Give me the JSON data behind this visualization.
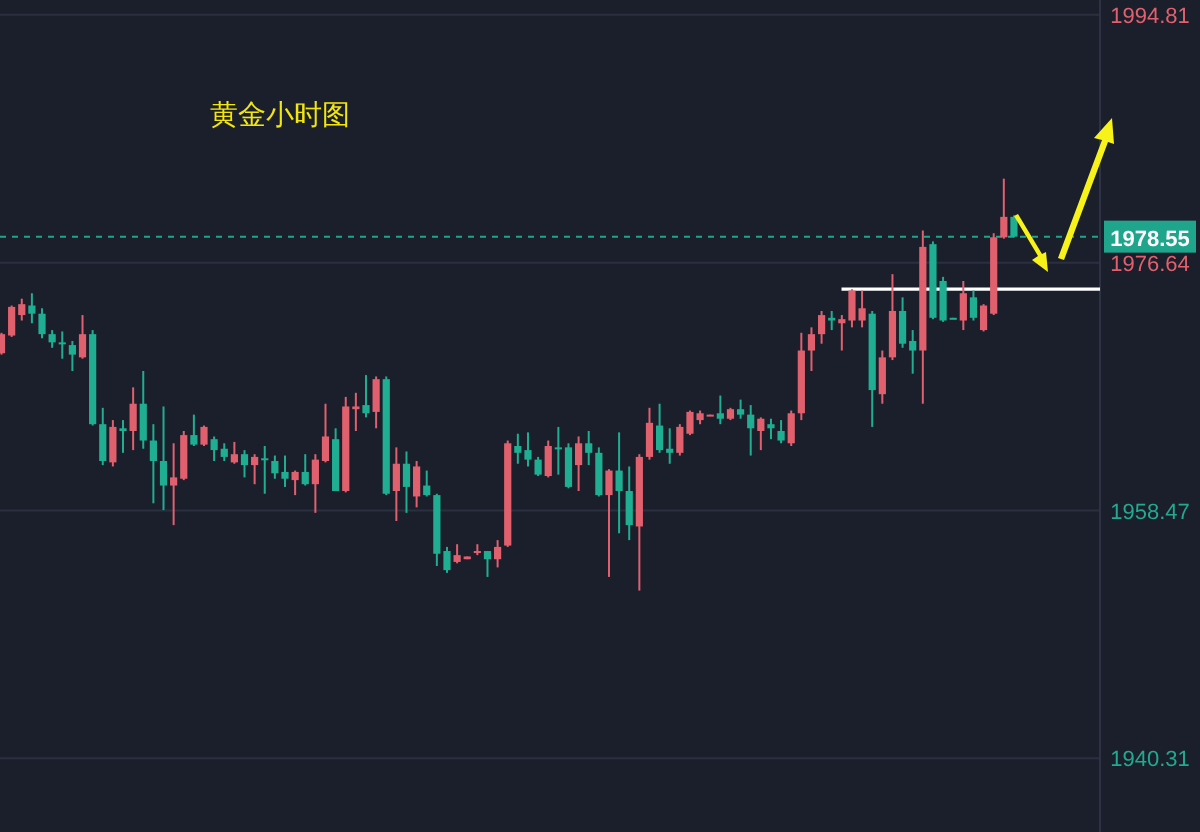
{
  "chart_data": {
    "type": "candlestick",
    "title": "黄金小时图",
    "categories": [
      null,
      null,
      null,
      null,
      null,
      null,
      null,
      null,
      null,
      null,
      null,
      null,
      null,
      null,
      null,
      null,
      null,
      null,
      null,
      null,
      null,
      null,
      null,
      null,
      null,
      null,
      null,
      null,
      null,
      null,
      null,
      null,
      null,
      null,
      null,
      null,
      null,
      null,
      null,
      null,
      null,
      null,
      null,
      null,
      null,
      null,
      null,
      null,
      null,
      null,
      null,
      null,
      null,
      null,
      null,
      null,
      null,
      null,
      null,
      null,
      null,
      null,
      null,
      null,
      null,
      null,
      null,
      null,
      null,
      null,
      null,
      null,
      null,
      null,
      null,
      null,
      null,
      null,
      null,
      null,
      null,
      null,
      null,
      null,
      null,
      null,
      null,
      null,
      null,
      null,
      null,
      null,
      null,
      null,
      null,
      null,
      null,
      null,
      null,
      null,
      null
    ],
    "ohlc": [
      [
        1970.0,
        1971.5,
        1969.9,
        1971.4
      ],
      [
        1971.3,
        1973.5,
        1971.2,
        1973.4
      ],
      [
        1972.8,
        1974.0,
        1972.4,
        1973.6
      ],
      [
        1973.5,
        1974.4,
        1972.2,
        1972.9
      ],
      [
        1972.9,
        1973.3,
        1971.1,
        1971.4
      ],
      [
        1971.4,
        1971.7,
        1970.4,
        1970.8
      ],
      [
        1970.8,
        1971.6,
        1969.6,
        1970.7
      ],
      [
        1970.6,
        1970.9,
        1968.7,
        1969.9
      ],
      [
        1969.7,
        1972.8,
        1969.6,
        1971.4
      ],
      [
        1971.4,
        1971.7,
        1964.7,
        1964.8
      ],
      [
        1964.8,
        1966.0,
        1961.8,
        1962.1
      ],
      [
        1962.0,
        1965.1,
        1961.7,
        1964.6
      ],
      [
        1964.5,
        1965.1,
        1962.7,
        1964.3
      ],
      [
        1964.3,
        1967.5,
        1962.9,
        1966.3
      ],
      [
        1966.3,
        1968.7,
        1963.0,
        1963.6
      ],
      [
        1963.6,
        1964.8,
        1959.0,
        1962.1
      ],
      [
        1962.1,
        1966.1,
        1958.5,
        1960.3
      ],
      [
        1960.3,
        1963.4,
        1957.4,
        1960.9
      ],
      [
        1960.8,
        1964.3,
        1960.7,
        1964.0
      ],
      [
        1964.0,
        1965.5,
        1963.2,
        1963.3
      ],
      [
        1963.3,
        1964.7,
        1963.2,
        1964.6
      ],
      [
        1963.7,
        1963.9,
        1962.1,
        1962.9
      ],
      [
        1963.0,
        1963.4,
        1962.1,
        1962.4
      ],
      [
        1962.0,
        1963.5,
        1961.9,
        1962.6
      ],
      [
        1962.6,
        1962.9,
        1960.9,
        1961.8
      ],
      [
        1961.8,
        1962.6,
        1960.4,
        1962.4
      ],
      [
        1962.3,
        1963.2,
        1959.7,
        1962.2
      ],
      [
        1962.1,
        1962.5,
        1960.8,
        1961.2
      ],
      [
        1961.3,
        1962.5,
        1960.2,
        1960.8
      ],
      [
        1960.7,
        1961.4,
        1959.6,
        1961.3
      ],
      [
        1961.3,
        1962.6,
        1960.3,
        1960.4
      ],
      [
        1960.4,
        1962.6,
        1958.3,
        1962.2
      ],
      [
        1962.1,
        1966.3,
        1962.0,
        1963.9
      ],
      [
        1963.7,
        1964.5,
        1959.9,
        1959.9
      ],
      [
        1959.9,
        1966.8,
        1959.8,
        1966.1
      ],
      [
        1965.9,
        1967.1,
        1964.3,
        1966.1
      ],
      [
        1966.2,
        1968.4,
        1965.3,
        1965.6
      ],
      [
        1965.7,
        1968.3,
        1964.5,
        1968.1
      ],
      [
        1968.1,
        1968.3,
        1959.6,
        1959.7
      ],
      [
        1959.9,
        1963.1,
        1957.7,
        1961.9
      ],
      [
        1961.9,
        1962.8,
        1958.3,
        1960.2
      ],
      [
        1959.5,
        1962.1,
        1958.7,
        1961.7
      ],
      [
        1960.3,
        1961.4,
        1959.5,
        1959.6
      ],
      [
        1959.6,
        1959.7,
        1954.4,
        1955.3
      ],
      [
        1955.5,
        1955.8,
        1953.9,
        1954.1
      ],
      [
        1954.7,
        1956.0,
        1954.6,
        1955.2
      ],
      [
        1954.9,
        1955.1,
        1954.9,
        1955.1
      ],
      [
        1955.4,
        1956.0,
        1955.2,
        1955.5
      ],
      [
        1955.5,
        1955.5,
        1953.6,
        1954.9
      ],
      [
        1954.9,
        1956.3,
        1954.3,
        1955.8
      ],
      [
        1955.9,
        1963.6,
        1955.8,
        1963.4
      ],
      [
        1963.2,
        1964.1,
        1961.9,
        1962.7
      ],
      [
        1962.9,
        1964.2,
        1961.7,
        1962.2
      ],
      [
        1962.2,
        1962.4,
        1961.0,
        1961.1
      ],
      [
        1961.0,
        1963.6,
        1960.9,
        1963.2
      ],
      [
        1963.1,
        1964.6,
        1961.1,
        1963.0
      ],
      [
        1963.1,
        1963.4,
        1960.1,
        1960.2
      ],
      [
        1961.8,
        1963.9,
        1959.9,
        1963.4
      ],
      [
        1963.4,
        1964.3,
        1961.8,
        1962.7
      ],
      [
        1962.7,
        1963.1,
        1959.5,
        1959.6
      ],
      [
        1959.6,
        1961.5,
        1953.6,
        1961.4
      ],
      [
        1961.4,
        1964.2,
        1956.8,
        1959.9
      ],
      [
        1959.9,
        1961.7,
        1956.3,
        1957.4
      ],
      [
        1957.3,
        1962.6,
        1952.6,
        1962.4
      ],
      [
        1962.4,
        1966.0,
        1962.2,
        1964.9
      ],
      [
        1964.7,
        1966.3,
        1962.7,
        1962.9
      ],
      [
        1963.0,
        1964.5,
        1961.9,
        1962.7
      ],
      [
        1962.7,
        1964.8,
        1962.5,
        1964.6
      ],
      [
        1964.1,
        1965.8,
        1964.0,
        1965.7
      ],
      [
        1965.1,
        1965.8,
        1964.8,
        1965.6
      ],
      [
        1965.4,
        1965.5,
        1965.4,
        1965.5
      ],
      [
        1965.6,
        1966.9,
        1964.8,
        1965.2
      ],
      [
        1965.2,
        1966.0,
        1965.1,
        1965.9
      ],
      [
        1965.9,
        1966.6,
        1965.2,
        1965.5
      ],
      [
        1965.5,
        1966.2,
        1962.5,
        1964.5
      ],
      [
        1964.3,
        1965.3,
        1962.9,
        1965.2
      ],
      [
        1964.8,
        1965.2,
        1963.7,
        1964.5
      ],
      [
        1964.3,
        1965.1,
        1963.4,
        1963.6
      ],
      [
        1963.4,
        1965.8,
        1963.2,
        1965.6
      ],
      [
        1965.6,
        1971.5,
        1965.1,
        1970.2
      ],
      [
        1970.2,
        1971.9,
        1968.7,
        1971.4
      ],
      [
        1971.4,
        1973.1,
        1970.7,
        1972.8
      ],
      [
        1972.6,
        1973.1,
        1971.7,
        1972.4
      ],
      [
        1972.2,
        1972.8,
        1970.2,
        1972.5
      ],
      [
        1972.4,
        1974.7,
        1971.9,
        1974.6
      ],
      [
        1972.4,
        1974.6,
        1971.9,
        1973.3
      ],
      [
        1972.9,
        1973.1,
        1964.6,
        1967.3
      ],
      [
        1967.0,
        1970.2,
        1966.3,
        1969.7
      ],
      [
        1969.7,
        1975.8,
        1969.5,
        1973.1
      ],
      [
        1973.1,
        1974.1,
        1970.4,
        1970.7
      ],
      [
        1970.9,
        1971.7,
        1968.5,
        1970.2
      ],
      [
        1970.2,
        1979.0,
        1966.3,
        1977.8
      ],
      [
        1978.0,
        1978.2,
        1972.5,
        1972.6
      ],
      [
        1975.3,
        1975.6,
        1972.3,
        1972.4
      ],
      [
        1972.6,
        1972.6,
        1972.5,
        1972.5
      ],
      [
        1972.4,
        1975.3,
        1971.7,
        1974.4
      ],
      [
        1974.1,
        1974.6,
        1972.4,
        1972.6
      ],
      [
        1971.7,
        1973.6,
        1971.6,
        1973.5
      ],
      [
        1972.9,
        1978.8,
        1972.8,
        1978.5
      ],
      [
        1978.5,
        1982.8,
        1978.4,
        1980.0
      ],
      [
        1980.0,
        1980.1,
        1978.5,
        1978.55
      ]
    ],
    "ylim": [
      1934.9,
      1995.9
    ],
    "yticks": [
      1994.81,
      1976.64,
      1958.47,
      1940.31
    ],
    "grid": "y",
    "ref_lines": [
      {
        "axis": "y",
        "value": 1978.55,
        "label": "1978.55",
        "color": "#1fa58c",
        "line_style": "dashed"
      },
      {
        "axis": "y",
        "value": 1974.7,
        "label": null,
        "color": "#ffffff",
        "line_style": "solid"
      }
    ]
  }
}
